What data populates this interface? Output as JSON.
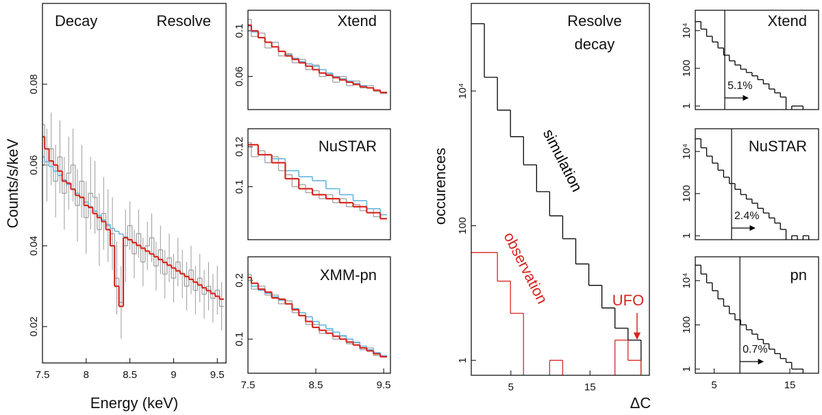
{
  "chart_data": [
    {
      "type": "line",
      "title_left": "Decay",
      "title_right": "Resolve",
      "xlabel": "Energy (keV)",
      "ylabel": "Counts/s/keV",
      "xlim": [
        7.5,
        9.6
      ],
      "ylim": [
        0.011,
        0.1
      ],
      "xticks": [
        7.5,
        8,
        8.5,
        9,
        9.5
      ],
      "yticks": [
        0.02,
        0.04,
        0.06,
        0.08
      ],
      "log": false,
      "x": [
        7.5,
        7.55,
        7.6,
        7.65,
        7.7,
        7.75,
        7.8,
        7.85,
        7.9,
        7.95,
        8,
        8.05,
        8.1,
        8.15,
        8.2,
        8.25,
        8.3,
        8.35,
        8.4,
        8.45,
        8.5,
        8.55,
        8.6,
        8.65,
        8.7,
        8.75,
        8.8,
        8.85,
        8.9,
        8.95,
        9,
        9.05,
        9.1,
        9.15,
        9.2,
        9.25,
        9.3,
        9.35,
        9.4,
        9.45,
        9.5,
        9.55
      ],
      "series": [
        {
          "color": "#9a9a9a",
          "values": [
            0.07,
            0.06,
            0.064,
            0.056,
            0.062,
            0.053,
            0.058,
            0.06,
            0.05,
            0.056,
            0.047,
            0.053,
            0.052,
            0.044,
            0.048,
            0.045,
            0.043,
            0.032,
            0.026,
            0.04,
            0.045,
            0.038,
            0.043,
            0.036,
            0.04,
            0.042,
            0.035,
            0.039,
            0.033,
            0.037,
            0.032,
            0.036,
            0.033,
            0.03,
            0.034,
            0.029,
            0.032,
            0.028,
            0.03,
            0.027,
            0.029,
            0.025
          ],
          "errors": [
            0.009,
            0.009,
            0.009,
            0.009,
            0.009,
            0.009,
            0.009,
            0.009,
            0.009,
            0.009,
            0.009,
            0.009,
            0.009,
            0.009,
            0.009,
            0.009,
            0.009,
            0.009,
            0.009,
            0.009,
            0.006,
            0.006,
            0.006,
            0.006,
            0.006,
            0.006,
            0.006,
            0.006,
            0.006,
            0.006,
            0.006,
            0.006,
            0.006,
            0.006,
            0.006,
            0.006,
            0.006,
            0.006,
            0.006,
            0.006,
            0.006,
            0.006
          ]
        },
        {
          "color": "#62b6df",
          "values": [
            0.062,
            0.0608,
            0.0596,
            0.0585,
            0.0574,
            0.0563,
            0.0552,
            0.0541,
            0.053,
            0.0519,
            0.0508,
            0.0497,
            0.0486,
            0.0475,
            0.0464,
            0.0453,
            0.0443,
            0.0436,
            0.0429,
            0.0422,
            0.0415,
            0.0408,
            0.0401,
            0.0394,
            0.0387,
            0.038,
            0.0373,
            0.0366,
            0.0359,
            0.0352,
            0.0345,
            0.0338,
            0.0331,
            0.0324,
            0.0317,
            0.031,
            0.0303,
            0.0296,
            0.0289,
            0.0282,
            0.0275,
            0.0268
          ]
        },
        {
          "color": "#d7261e",
          "values": [
            0.067,
            0.064,
            0.061,
            0.06,
            0.0585,
            0.056,
            0.0555,
            0.054,
            0.0525,
            0.052,
            0.05,
            0.0495,
            0.048,
            0.047,
            0.046,
            0.044,
            0.04,
            0.03,
            0.025,
            0.042,
            0.0415,
            0.0408,
            0.0401,
            0.0394,
            0.0387,
            0.038,
            0.0373,
            0.0366,
            0.0359,
            0.0352,
            0.0345,
            0.0338,
            0.0331,
            0.0324,
            0.0317,
            0.031,
            0.0303,
            0.0296,
            0.0289,
            0.0282,
            0.0275,
            0.0268
          ]
        }
      ]
    },
    {
      "type": "line",
      "title": "Xtend",
      "xlim": [
        7.5,
        9.6
      ],
      "ylim": [
        0.031,
        0.118
      ],
      "yticks": [
        0.06,
        0.1
      ],
      "log": false,
      "x": [
        7.5,
        7.6,
        7.7,
        7.8,
        7.9,
        8,
        8.1,
        8.2,
        8.3,
        8.4,
        8.5,
        8.6,
        8.7,
        8.8,
        8.9,
        9,
        9.1,
        9.2,
        9.3,
        9.4,
        9.5
      ],
      "series": [
        {
          "color": "#9a9a9a",
          "values": [
            0.11,
            0.095,
            0.098,
            0.085,
            0.09,
            0.078,
            0.08,
            0.072,
            0.075,
            0.066,
            0.07,
            0.06,
            0.062,
            0.055,
            0.06,
            0.052,
            0.056,
            0.05,
            0.052,
            0.047,
            0.045
          ]
        },
        {
          "color": "#62b6df",
          "values": [
            0.104,
            0.099,
            0.094,
            0.09,
            0.086,
            0.082,
            0.079,
            0.076,
            0.073,
            0.071,
            0.069,
            0.066,
            0.063,
            0.06,
            0.058,
            0.056,
            0.054,
            0.052,
            0.05,
            0.048,
            0.046
          ]
        },
        {
          "color": "#d7261e",
          "values": [
            0.105,
            0.1,
            0.094,
            0.09,
            0.086,
            0.082,
            0.078,
            0.075,
            0.072,
            0.069,
            0.066,
            0.063,
            0.061,
            0.059,
            0.057,
            0.055,
            0.053,
            0.051,
            0.05,
            0.048,
            0.046
          ]
        }
      ]
    },
    {
      "type": "line",
      "title": "NuSTAR",
      "xlim": [
        7.5,
        9.6
      ],
      "ylim": [
        0.0735,
        0.129
      ],
      "yticks": [
        0.1,
        0.12
      ],
      "log": false,
      "x": [
        7.5,
        7.6,
        7.7,
        7.8,
        7.9,
        8,
        8.1,
        8.2,
        8.3,
        8.4,
        8.5,
        8.6,
        8.7,
        8.8,
        8.9,
        9,
        9.1,
        9.2,
        9.3,
        9.4,
        9.5
      ],
      "series": [
        {
          "color": "#9a9a9a",
          "values": [
            0.122,
            0.115,
            0.118,
            0.112,
            0.115,
            0.108,
            0.106,
            0.1,
            0.101,
            0.097,
            0.098,
            0.094,
            0.096,
            0.092,
            0.094,
            0.09,
            0.091,
            0.088,
            0.089,
            0.085,
            0.084
          ]
        },
        {
          "color": "#62b6df",
          "values": [
            0.121,
            0.121,
            0.116,
            0.116,
            0.114,
            0.114,
            0.108,
            0.108,
            0.105,
            0.105,
            0.103,
            0.103,
            0.099,
            0.099,
            0.096,
            0.096,
            0.093,
            0.093,
            0.089,
            0.089,
            0.086
          ]
        },
        {
          "color": "#d7261e",
          "values": [
            0.121,
            0.121,
            0.116,
            0.116,
            0.112,
            0.112,
            0.104,
            0.104,
            0.099,
            0.099,
            0.096,
            0.096,
            0.094,
            0.094,
            0.092,
            0.092,
            0.09,
            0.09,
            0.087,
            0.087,
            0.084
          ]
        }
      ]
    },
    {
      "type": "line",
      "title": "XMM-pn",
      "xlim": [
        7.5,
        9.6
      ],
      "ylim": [
        0.042,
        0.24
      ],
      "xticks": [
        7.5,
        8.5,
        9.5
      ],
      "yticks": [
        0.1,
        0.2
      ],
      "log": false,
      "x": [
        7.5,
        7.6,
        7.7,
        7.8,
        7.9,
        8,
        8.1,
        8.2,
        8.3,
        8.4,
        8.5,
        8.6,
        8.7,
        8.8,
        8.9,
        9,
        9.1,
        9.2,
        9.3,
        9.4,
        9.5
      ],
      "series": [
        {
          "color": "#9a9a9a",
          "values": [
            0.21,
            0.185,
            0.19,
            0.175,
            0.175,
            0.16,
            0.165,
            0.145,
            0.145,
            0.125,
            0.125,
            0.11,
            0.115,
            0.1,
            0.105,
            0.092,
            0.095,
            0.082,
            0.085,
            0.072,
            0.07
          ]
        },
        {
          "color": "#62b6df",
          "values": [
            0.2,
            0.19,
            0.183,
            0.178,
            0.172,
            0.166,
            0.16,
            0.152,
            0.145,
            0.138,
            0.13,
            0.124,
            0.118,
            0.112,
            0.106,
            0.1,
            0.094,
            0.088,
            0.082,
            0.077,
            0.072
          ]
        },
        {
          "color": "#d7261e",
          "values": [
            0.205,
            0.195,
            0.185,
            0.18,
            0.17,
            0.168,
            0.16,
            0.15,
            0.14,
            0.13,
            0.12,
            0.115,
            0.11,
            0.105,
            0.1,
            0.095,
            0.09,
            0.085,
            0.08,
            0.075,
            0.07
          ]
        }
      ]
    },
    {
      "type": "histogram",
      "title_lines": [
        "Resolve",
        "decay"
      ],
      "xlabel": "ΔC",
      "ylabel": "occurences",
      "annotation": "UFO",
      "xlim": [
        0,
        22.5
      ],
      "ylim": [
        0.6,
        200000
      ],
      "log": true,
      "xticks": [
        5,
        15
      ],
      "yticks": [
        1,
        100,
        {
          "value": 10000,
          "label": "10⁴"
        }
      ],
      "bins": [
        0,
        1.65,
        3.3,
        4.95,
        6.6,
        8.25,
        9.9,
        11.55,
        13.2,
        14.85,
        16.5,
        18.15,
        19.8,
        21.45
      ],
      "series": [
        {
          "name": "simulation",
          "color": "#000000",
          "values": [
            100000,
            16000,
            5200,
            2100,
            800,
            320,
            140,
            64,
            27,
            13,
            6,
            3,
            2
          ]
        },
        {
          "name": "observation",
          "color": "#d7261e",
          "values": [
            40,
            40,
            15,
            5,
            null,
            null,
            1,
            null,
            null,
            null,
            null,
            2,
            1
          ]
        }
      ]
    },
    {
      "type": "histogram",
      "title": "Xtend",
      "annotation": "5.1%",
      "marker_x": 6.4,
      "xlim": [
        2.5,
        18.8
      ],
      "ylim": [
        0.65,
        120000
      ],
      "log": true,
      "yticks": [
        1,
        100,
        {
          "value": 10000,
          "label": "10⁴"
        }
      ],
      "bins": [
        2.5,
        3.25,
        4,
        4.75,
        5.5,
        6.25,
        7,
        7.75,
        8.5,
        9.25,
        10,
        10.75,
        11.5,
        12.25,
        13,
        13.75,
        14.5,
        15.25,
        16,
        16.75,
        17.5
      ],
      "series": [
        {
          "color": "#000000",
          "values": [
            30000,
            12000,
            5000,
            2500,
            1200,
            500,
            250,
            150,
            90,
            60,
            40,
            25,
            15,
            8,
            5,
            3,
            null,
            1,
            1,
            null
          ]
        }
      ]
    },
    {
      "type": "histogram",
      "title": "NuSTAR",
      "annotation": "2.4%",
      "marker_x": 7.3,
      "xlim": [
        2.5,
        18.8
      ],
      "ylim": [
        0.65,
        120000
      ],
      "log": true,
      "yticks": [
        1,
        100,
        {
          "value": 10000,
          "label": "10⁴"
        }
      ],
      "bins": [
        2.5,
        3.25,
        4,
        4.75,
        5.5,
        6.25,
        7,
        7.75,
        8.5,
        9.25,
        10,
        10.75,
        11.5,
        12.25,
        13,
        13.75,
        14.5,
        15.25,
        16,
        16.75,
        17.5
      ],
      "series": [
        {
          "color": "#000000",
          "values": [
            40000,
            15000,
            6000,
            2800,
            1300,
            600,
            300,
            160,
            90,
            55,
            35,
            20,
            12,
            7,
            4,
            2,
            null,
            1,
            null,
            1
          ]
        }
      ]
    },
    {
      "type": "histogram",
      "title": "pn",
      "annotation": "0.7%",
      "marker_x": 8.4,
      "xlim": [
        2.5,
        18.8
      ],
      "ylim": [
        0.65,
        120000
      ],
      "log": true,
      "xticks": [
        5,
        15
      ],
      "yticks": [
        1,
        100,
        {
          "value": 10000,
          "label": "10⁴"
        }
      ],
      "bins": [
        2.5,
        3.25,
        4,
        4.75,
        5.5,
        6.25,
        7,
        7.75,
        8.5,
        9.25,
        10,
        10.75,
        11.5,
        12.25,
        13,
        13.75,
        14.5,
        15.25,
        16,
        16.75,
        17.5
      ],
      "series": [
        {
          "color": "#000000",
          "values": [
            50000,
            20000,
            8000,
            3500,
            1500,
            700,
            320,
            170,
            100,
            60,
            38,
            22,
            14,
            8,
            5,
            3,
            2,
            1,
            1,
            null
          ]
        }
      ]
    }
  ]
}
